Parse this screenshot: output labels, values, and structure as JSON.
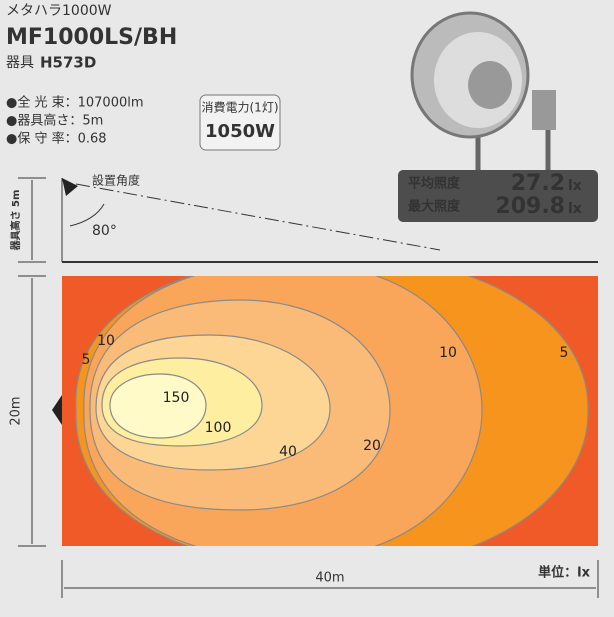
{
  "header": {
    "series": "メタハラ1000W",
    "model": "MF1000LS/BH",
    "fixture_label": "器具",
    "fixture": "H573D"
  },
  "specs": [
    "●全 光 束：107000lm",
    "●器具高さ：5m",
    "●保 守 率：0.68"
  ],
  "power": {
    "label": "消費電力(1灯)",
    "value": "1050W"
  },
  "illuminance": [
    {
      "label": "平均照度",
      "value": "27.2",
      "unit": "lx"
    },
    {
      "label": "最大照度",
      "value": "209.8",
      "unit": "lx"
    }
  ],
  "side_view": {
    "height": "器具高さ 5m",
    "angle_label": "設置角度",
    "angle": "80°"
  },
  "plan": {
    "width": "40m",
    "depth": "20m",
    "unit": "単位：lx",
    "contours": [
      "5",
      "10",
      "150",
      "100",
      "40",
      "20",
      "10",
      "5"
    ]
  }
}
